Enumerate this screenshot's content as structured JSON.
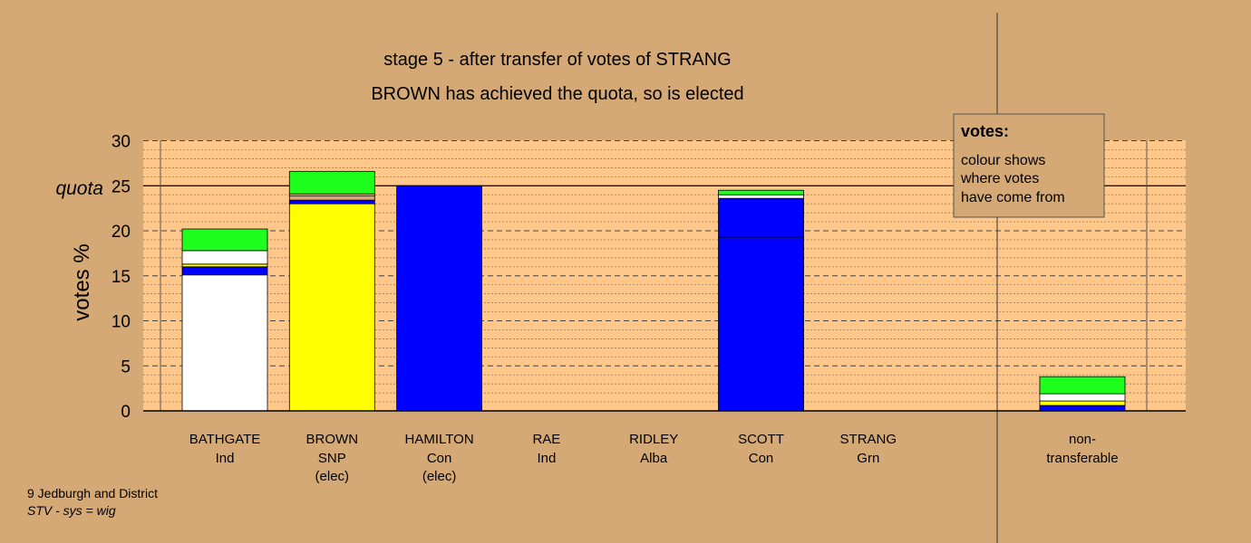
{
  "title_line1": "stage 5 - after transfer of votes of STRANG",
  "title_line2": "BROWN has achieved the quota, so is elected",
  "legend": {
    "heading": "votes:",
    "lines": [
      "colour shows",
      "where votes",
      "have come from"
    ]
  },
  "footer": {
    "line1": "9 Jedburgh and District",
    "line2": "STV - sys = wig"
  },
  "chart_data": {
    "type": "bar",
    "stacked": true,
    "ylabel": "votes %",
    "ylim": [
      0,
      30
    ],
    "yticks": [
      0,
      5,
      10,
      15,
      20,
      25,
      30
    ],
    "quota": 25,
    "quota_label": "quota",
    "grid": true,
    "legend_position": "top-right",
    "candidates": [
      {
        "name": "BATHGATE",
        "party": "Ind",
        "note": "",
        "segments": [
          {
            "value": 15.1,
            "color": "#ffffff"
          },
          {
            "value": 0.9,
            "color": "#0000ff"
          },
          {
            "value": 0.3,
            "color": "#ffff00"
          },
          {
            "value": 1.5,
            "color": "#ffffff"
          },
          {
            "value": 2.4,
            "color": "#1eff1e"
          }
        ]
      },
      {
        "name": "BROWN",
        "party": "SNP",
        "note": "(elec)",
        "segments": [
          {
            "value": 23.0,
            "color": "#ffff00"
          },
          {
            "value": 0.4,
            "color": "#0000ff"
          },
          {
            "value": 0.5,
            "color": "#d4a976"
          },
          {
            "value": 0.2,
            "color": "#ffff00"
          },
          {
            "value": 2.5,
            "color": "#1eff1e"
          }
        ]
      },
      {
        "name": "HAMILTON",
        "party": "Con",
        "note": "(elec)",
        "segments": [
          {
            "value": 25.0,
            "color": "#0000ff"
          }
        ]
      },
      {
        "name": "RAE",
        "party": "Ind",
        "note": "",
        "segments": []
      },
      {
        "name": "RIDLEY",
        "party": "Alba",
        "note": "",
        "segments": []
      },
      {
        "name": "SCOTT",
        "party": "Con",
        "note": "",
        "segments": [
          {
            "value": 19.3,
            "color": "#0000ff"
          },
          {
            "value": 4.3,
            "color": "#0000ff"
          },
          {
            "value": 0.4,
            "color": "#ffffff"
          },
          {
            "value": 0.5,
            "color": "#1eff1e"
          }
        ]
      },
      {
        "name": "STRANG",
        "party": "Grn",
        "note": "",
        "segments": []
      }
    ],
    "nontransferable": {
      "label_line1": "non-",
      "label_line2": "transferable",
      "segments": [
        {
          "value": 0.6,
          "color": "#0000ff"
        },
        {
          "value": 0.5,
          "color": "#ffff00"
        },
        {
          "value": 0.8,
          "color": "#ffffff"
        },
        {
          "value": 1.9,
          "color": "#1eff1e"
        }
      ]
    }
  }
}
